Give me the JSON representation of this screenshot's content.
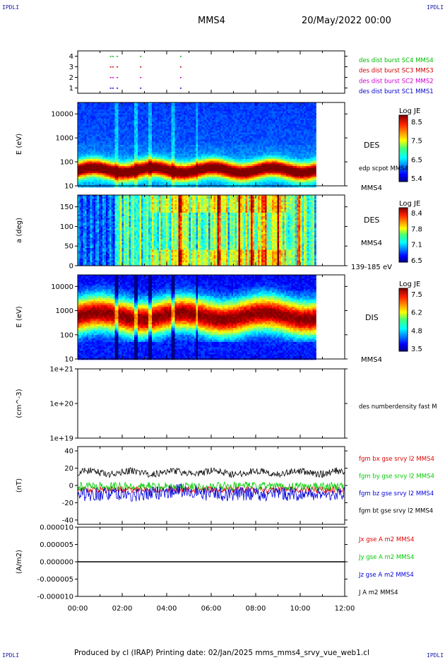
{
  "page": {
    "corner_label": "IPDLI",
    "spacecraft": "MMS4",
    "datetime": "20/May/2022 00:00",
    "footer": "Produced by cl (IRAP)   Printing date: 02/Jan/2025   mms_mms4_srvy_vue_web1.cl"
  },
  "chart_data": [
    {
      "panel": "burst",
      "type": "scatter",
      "yticks": [
        "4",
        "3",
        "2",
        "1"
      ],
      "ylim": [
        0.5,
        4.5
      ],
      "legend_position": "right",
      "series": [
        {
          "name": "des dist burst SC1 MMS1",
          "color": "#0000cc",
          "y": 1,
          "x": [
            1.45,
            1.55,
            1.75,
            2.8,
            4.6
          ]
        },
        {
          "name": "des dist burst SC2 MMS2",
          "color": "#cc00cc",
          "y": 2,
          "x": [
            1.45,
            1.55,
            1.75,
            2.8,
            4.6
          ]
        },
        {
          "name": "des dist burst SC3 MMS3",
          "color": "#cc0000",
          "y": 3,
          "x": [
            1.45,
            1.55,
            1.75,
            2.8,
            4.6
          ]
        },
        {
          "name": "des dist burst SC4 MMS4",
          "color": "#00bb00",
          "y": 4,
          "x": [
            1.45,
            1.55,
            1.75,
            2.8,
            4.6
          ]
        }
      ]
    },
    {
      "panel": "des_energy",
      "type": "heatmap",
      "ylabel": "E (eV)",
      "yscale": "log",
      "ylim": [
        10,
        30000
      ],
      "yticks": [
        "10000",
        "1000",
        "100",
        "10"
      ],
      "data_end_hour": 10.65,
      "colorbar": {
        "title": "Log JE",
        "ticks": [
          "8.5",
          "7.5",
          "6.5",
          "5.4"
        ],
        "range": [
          5.4,
          8.5
        ]
      },
      "labels": [
        "DES",
        "edp scpot MMS4",
        "MMS4"
      ]
    },
    {
      "panel": "des_pitch",
      "type": "heatmap",
      "ylabel": "a (deg)",
      "ylim": [
        0,
        180
      ],
      "yticks": [
        "150",
        "100",
        "50",
        "0"
      ],
      "data_end_hour": 10.65,
      "colorbar": {
        "title": "Log JE",
        "ticks": [
          "8.4",
          "7.8",
          "7.1",
          "6.5"
        ],
        "range": [
          6.5,
          8.4
        ]
      },
      "labels": [
        "DES",
        "MMS4",
        "139-185 eV"
      ]
    },
    {
      "panel": "dis_energy",
      "type": "heatmap",
      "ylabel": "E (eV)",
      "yscale": "log",
      "ylim": [
        10,
        30000
      ],
      "yticks": [
        "10000",
        "1000",
        "100",
        "10"
      ],
      "data_end_hour": 10.65,
      "colorbar": {
        "title": "Log JE",
        "ticks": [
          "7.5",
          "6.2",
          "4.8",
          "3.5"
        ],
        "range": [
          3.5,
          7.5
        ]
      },
      "labels": [
        "DIS",
        "MMS4"
      ]
    },
    {
      "panel": "density",
      "type": "line",
      "ylabel": "(cm^-3)",
      "yscale": "log",
      "ylim": [
        1e+19,
        1e+21
      ],
      "yticks": [
        "1e+21",
        "1e+20",
        "1e+19"
      ],
      "series": [
        {
          "name": "des numberdensity fast M",
          "color": "#000000",
          "values": []
        }
      ]
    },
    {
      "panel": "fgm",
      "type": "line",
      "ylabel": "(nT)",
      "ylim": [
        -45,
        45
      ],
      "yticks": [
        "40",
        "20",
        "0",
        "-20",
        "-40"
      ],
      "series": [
        {
          "name": "fgm bx gse srvy l2 MMS4",
          "color": "#dd0000",
          "mean": -5,
          "jitter": 4
        },
        {
          "name": "fgm by gse srvy l2 MMS4",
          "color": "#00cc00",
          "mean": -1,
          "jitter": 5
        },
        {
          "name": "fgm bz gse srvy l2 MMS4",
          "color": "#0000dd",
          "mean": -10,
          "jitter": 8
        },
        {
          "name": "fgm bt gse srvy l2 MMS4",
          "color": "#000000",
          "mean": 15,
          "jitter": 4
        }
      ]
    },
    {
      "panel": "current",
      "type": "line",
      "ylabel": "(A/m2)",
      "ylim": [
        -1e-05,
        1e-05
      ],
      "yticks": [
        "0.000010",
        "0.000005",
        "0.000000",
        "-0.000005",
        "-0.000010"
      ],
      "series": [
        {
          "name": "Jx gse A m2 MMS4",
          "color": "#dd0000",
          "value": 0
        },
        {
          "name": "Jy gse A m2 MMS4",
          "color": "#00cc00",
          "value": 0
        },
        {
          "name": "Jz gse A m2 MMS4",
          "color": "#0000dd",
          "value": 0
        },
        {
          "name": "J A m2 MMS4",
          "color": "#000000",
          "value": 0
        }
      ]
    }
  ],
  "x_axis": {
    "range_hours": [
      0,
      12
    ],
    "tick_labels": [
      "00:00",
      "02:00",
      "04:00",
      "06:00",
      "08:00",
      "10:00",
      "12:00"
    ]
  }
}
